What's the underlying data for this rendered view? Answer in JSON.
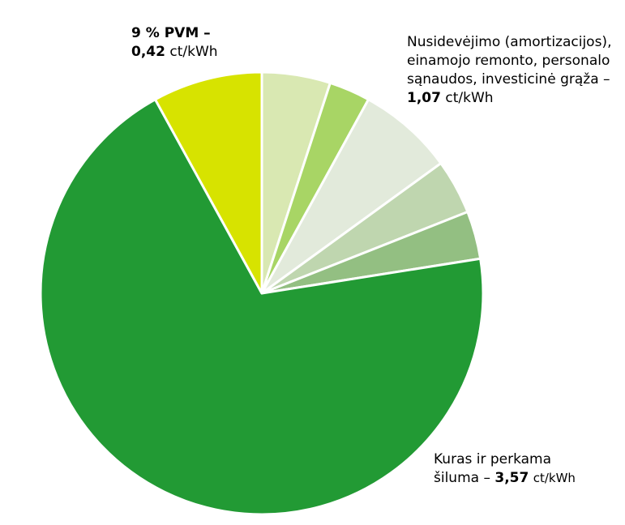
{
  "chart_data": {
    "type": "pie",
    "title": "",
    "start_angle_deg": 0,
    "direction": "clockwise",
    "slices": [
      {
        "value": 5.0,
        "color": "#d9e8b2"
      },
      {
        "value": 3.0,
        "color": "#a8d565"
      },
      {
        "value": 7.0,
        "color": "#e2eadb"
      },
      {
        "value": 4.0,
        "color": "#bfd6af"
      },
      {
        "value": 3.5,
        "color": "#93bf82"
      },
      {
        "value": 69.5,
        "color": "#229a34"
      },
      {
        "value": 8.0,
        "color": "#d7e300"
      }
    ],
    "annotations": {
      "vat": {
        "line1": "9 % PVM –",
        "value": "0,42",
        "unit": "ct/kWh"
      },
      "depreciation": {
        "line1": "Nusidevėjimo (amortizacijos),",
        "line2": "einamojo remonto, personalo",
        "line3": "sąnaudos, investicinė grąža –",
        "value": "1,07",
        "unit": "ct/kWh"
      },
      "fuel": {
        "line1": "Kuras ir perkama",
        "line2_prefix": "šiluma –",
        "value": "3,57",
        "unit": "ct/kWh"
      }
    }
  }
}
